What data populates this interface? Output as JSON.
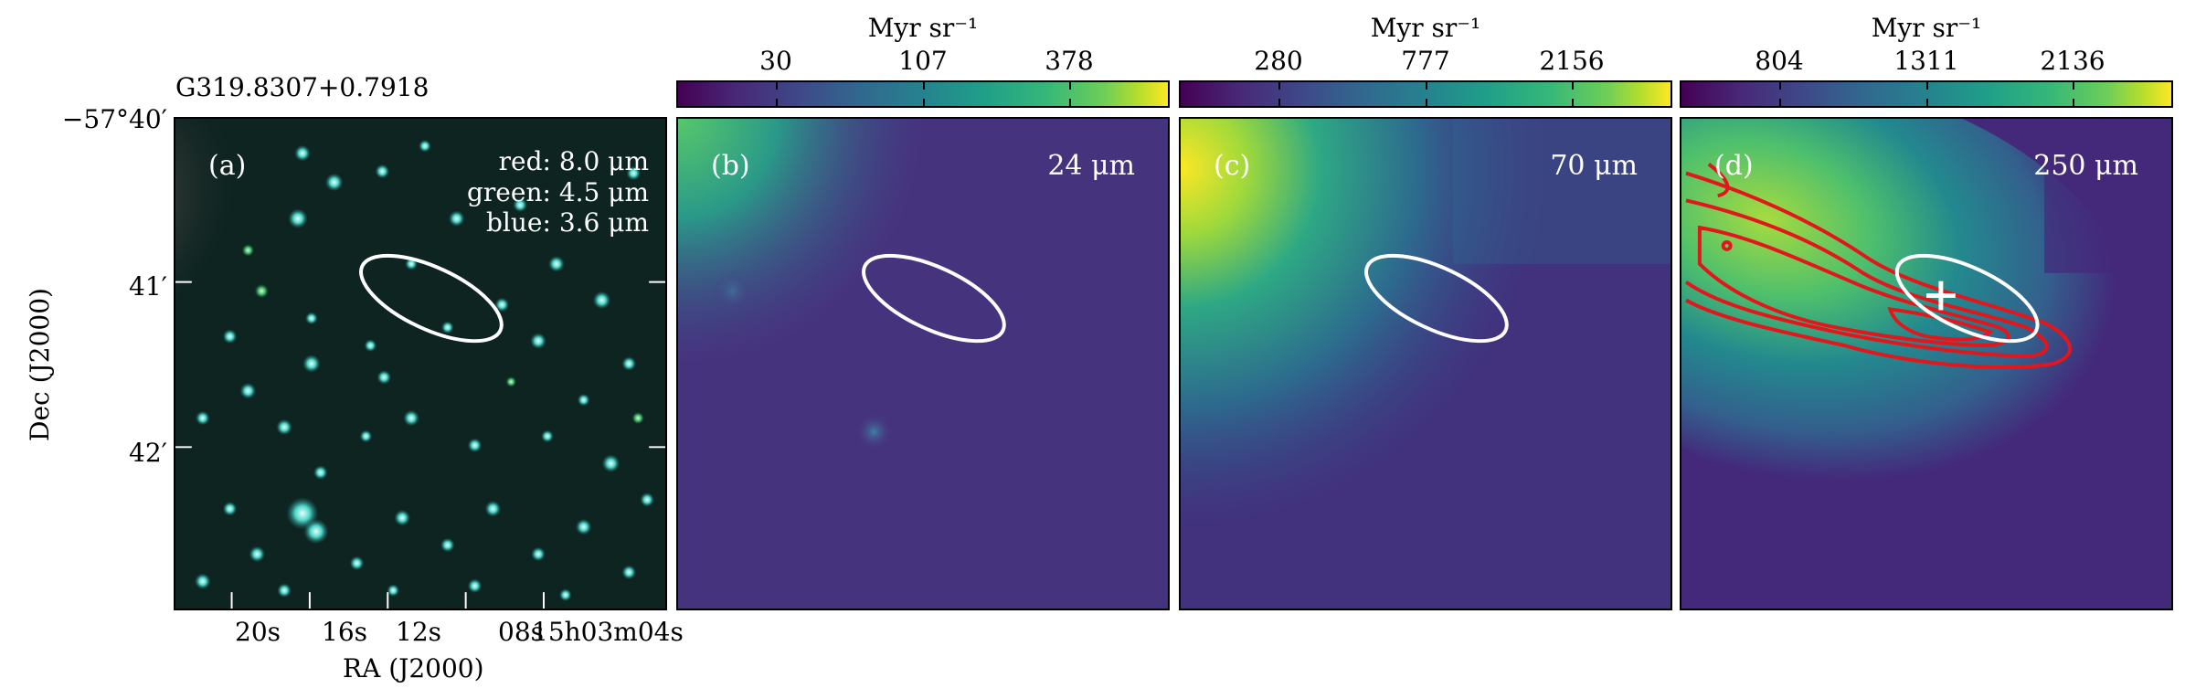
{
  "source_name": "G319.8307+0.7918",
  "axes": {
    "dec_label": "Dec (J2000)",
    "ra_label": "RA (J2000)",
    "dec_ticks": [
      "−57°40′",
      "41′",
      "42′"
    ],
    "ra_ticks": [
      "20s",
      "16s",
      "12s",
      "08s",
      "15h03m04s"
    ]
  },
  "panels": [
    {
      "label": "(a)",
      "legend": [
        "red: 8.0 μm",
        "green: 4.5 μm",
        "blue: 3.6 μm"
      ],
      "wavelength": ""
    },
    {
      "label": "(b)",
      "wavelength": "24 μm",
      "colorbar": {
        "title": "Myr sr⁻¹",
        "ticks": [
          "30",
          "107",
          "378"
        ]
      }
    },
    {
      "label": "(c)",
      "wavelength": "70 μm",
      "colorbar": {
        "title": "Myr sr⁻¹",
        "ticks": [
          "280",
          "777",
          "2156"
        ]
      }
    },
    {
      "label": "(d)",
      "wavelength": "250 μm",
      "colorbar": {
        "title": "Myr sr⁻¹",
        "ticks": [
          "804",
          "1311",
          "2136"
        ]
      }
    }
  ],
  "colors": {
    "ellipse": "#ffffff",
    "contours": "#e3161b",
    "marker": "#ffffff",
    "colormap": "viridis"
  }
}
